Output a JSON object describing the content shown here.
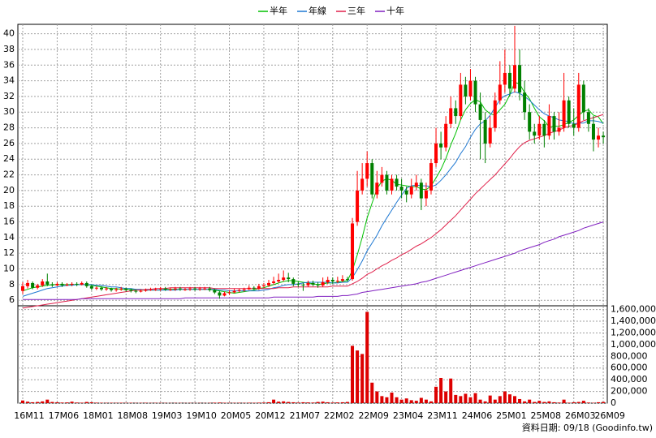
{
  "chart_data": {
    "type": "candlestick",
    "categories": [
      "16M11",
      null,
      null,
      null,
      null,
      null,
      null,
      "17M06",
      null,
      null,
      null,
      null,
      null,
      null,
      "18M01",
      null,
      null,
      null,
      null,
      null,
      null,
      "18M08",
      null,
      null,
      null,
      null,
      null,
      null,
      "19M03",
      null,
      null,
      null,
      null,
      null,
      null,
      "19M10",
      null,
      null,
      null,
      null,
      null,
      null,
      "20M05",
      null,
      null,
      null,
      null,
      null,
      null,
      "20M12",
      null,
      null,
      null,
      null,
      null,
      null,
      "21M07",
      null,
      null,
      null,
      null,
      null,
      null,
      "22M02",
      null,
      null,
      null,
      null,
      null,
      null,
      "22M09",
      null,
      null,
      null,
      null,
      null,
      null,
      "23M04",
      null,
      null,
      null,
      null,
      null,
      null,
      "23M11",
      null,
      null,
      null,
      null,
      null,
      null,
      "24M06",
      null,
      null,
      null,
      null,
      null,
      null,
      "25M01",
      null,
      null,
      null,
      null,
      null,
      null,
      "25M08",
      null,
      null,
      null,
      null,
      null,
      null,
      "26M03",
      null,
      null,
      null,
      null,
      null,
      "26M09"
    ],
    "open": [
      7.2,
      7.8,
      8.2,
      7.6,
      7.9,
      8.4,
      8.0,
      7.9,
      8.1,
      7.9,
      8.0,
      8.1,
      8.0,
      8.2,
      7.8,
      7.5,
      7.6,
      7.4,
      7.5,
      7.3,
      7.4,
      7.5,
      7.3,
      7.2,
      7.1,
      7.2,
      7.3,
      7.4,
      7.4,
      7.5,
      7.4,
      7.4,
      7.5,
      7.4,
      7.4,
      7.5,
      7.4,
      7.5,
      7.5,
      7.3,
      7.0,
      6.6,
      6.9,
      7.0,
      7.2,
      7.3,
      7.4,
      7.6,
      7.5,
      7.8,
      7.9,
      8.2,
      8.4,
      8.6,
      8.9,
      8.7,
      8.1,
      8.0,
      7.9,
      8.2,
      8.0,
      7.9,
      8.3,
      8.6,
      8.4,
      8.5,
      8.7,
      8.7,
      16.0,
      20.0,
      21.5,
      23.5,
      19.5,
      21.0,
      22.0,
      20.0,
      21.5,
      20.5,
      20.0,
      19.5,
      20.5,
      21.0,
      19.0,
      20.0,
      23.5,
      26.0,
      25.5,
      28.5,
      30.5,
      29.5,
      33.5,
      32.0,
      34.0,
      31.0,
      29.0,
      26.0,
      28.0,
      31.5,
      33.5,
      35.0,
      33.0,
      36.0,
      32.5,
      30.0,
      27.5,
      27.0,
      28.5,
      27.0,
      29.5,
      27.5,
      28.0,
      31.5,
      28.5,
      28.0,
      33.5,
      30.0,
      28.5,
      26.5,
      27.0
    ],
    "high": [
      8.3,
      8.6,
      8.4,
      8.1,
      8.7,
      9.4,
      8.3,
      8.3,
      8.3,
      8.2,
      8.3,
      8.3,
      8.4,
      8.4,
      8.0,
      7.8,
      7.8,
      7.7,
      7.6,
      7.6,
      7.7,
      7.6,
      7.5,
      7.4,
      7.4,
      7.5,
      7.6,
      7.6,
      7.7,
      7.7,
      7.6,
      7.7,
      7.7,
      7.6,
      7.7,
      7.7,
      7.7,
      7.7,
      7.7,
      7.5,
      7.2,
      7.1,
      7.3,
      7.5,
      7.5,
      7.6,
      7.9,
      7.8,
      8.1,
      8.2,
      8.6,
      9.0,
      9.4,
      9.8,
      9.5,
      8.9,
      8.4,
      8.2,
      8.5,
      8.5,
      8.3,
      8.9,
      9.0,
      8.9,
      9.0,
      9.2,
      9.0,
      16.5,
      22.5,
      23.5,
      25.0,
      24.0,
      22.5,
      23.0,
      22.5,
      22.0,
      22.0,
      21.5,
      20.5,
      21.5,
      22.0,
      21.5,
      21.0,
      24.0,
      28.0,
      27.5,
      29.5,
      32.0,
      31.5,
      35.0,
      34.5,
      35.5,
      34.5,
      32.5,
      30.0,
      29.5,
      32.5,
      36.5,
      38.0,
      36.0,
      41.0,
      38.0,
      34.0,
      31.0,
      28.5,
      29.5,
      29.0,
      31.0,
      30.0,
      30.0,
      35.0,
      32.0,
      30.5,
      35.0,
      34.0,
      30.5,
      29.5,
      28.0,
      27.5
    ],
    "low": [
      6.8,
      7.5,
      7.4,
      7.4,
      7.7,
      7.8,
      7.7,
      7.8,
      7.7,
      7.8,
      7.8,
      7.8,
      7.9,
      7.6,
      7.3,
      7.3,
      7.2,
      7.2,
      7.1,
      7.1,
      7.2,
      7.1,
      7.0,
      6.9,
      7.0,
      7.1,
      7.2,
      7.2,
      7.2,
      7.2,
      7.2,
      7.2,
      7.2,
      7.2,
      7.2,
      7.2,
      7.2,
      7.3,
      7.1,
      6.8,
      6.2,
      6.5,
      6.7,
      6.9,
      7.0,
      7.1,
      7.3,
      7.3,
      7.3,
      7.6,
      7.7,
      8.0,
      8.2,
      8.4,
      8.3,
      7.8,
      7.7,
      7.2,
      7.7,
      7.8,
      7.6,
      7.7,
      8.1,
      8.1,
      8.2,
      8.3,
      8.4,
      8.5,
      15.5,
      19.5,
      20.5,
      19.0,
      19.0,
      20.5,
      19.5,
      19.5,
      20.0,
      19.0,
      18.5,
      19.0,
      20.0,
      17.5,
      18.0,
      19.5,
      23.0,
      24.0,
      25.0,
      28.0,
      28.5,
      29.0,
      31.0,
      31.5,
      30.0,
      24.0,
      23.5,
      25.5,
      27.5,
      31.0,
      32.5,
      32.0,
      32.5,
      31.5,
      29.0,
      26.5,
      26.0,
      26.5,
      25.5,
      26.5,
      26.5,
      27.0,
      27.5,
      28.0,
      27.0,
      27.5,
      29.0,
      27.5,
      25.0,
      25.5,
      26.0
    ],
    "close": [
      7.8,
      8.2,
      7.6,
      7.9,
      8.4,
      8.0,
      7.9,
      8.1,
      7.9,
      8.0,
      8.1,
      8.0,
      8.2,
      7.8,
      7.5,
      7.6,
      7.4,
      7.5,
      7.3,
      7.4,
      7.5,
      7.3,
      7.2,
      7.1,
      7.2,
      7.3,
      7.4,
      7.4,
      7.5,
      7.4,
      7.4,
      7.5,
      7.4,
      7.4,
      7.5,
      7.4,
      7.5,
      7.5,
      7.3,
      7.0,
      6.6,
      6.9,
      7.0,
      7.2,
      7.3,
      7.4,
      7.6,
      7.5,
      7.8,
      7.9,
      8.2,
      8.4,
      8.6,
      8.9,
      8.7,
      8.1,
      8.0,
      7.9,
      8.2,
      8.0,
      7.9,
      8.3,
      8.6,
      8.4,
      8.5,
      8.7,
      8.6,
      15.8,
      20.0,
      21.5,
      23.5,
      19.5,
      21.0,
      22.0,
      20.0,
      21.5,
      20.5,
      20.0,
      19.5,
      20.5,
      21.0,
      19.0,
      20.0,
      23.5,
      26.0,
      25.5,
      28.5,
      30.5,
      29.5,
      33.5,
      32.0,
      34.0,
      31.0,
      29.0,
      26.0,
      28.0,
      31.5,
      33.5,
      35.0,
      33.0,
      36.0,
      32.5,
      30.0,
      27.5,
      27.0,
      28.5,
      27.0,
      29.5,
      27.5,
      28.0,
      31.5,
      28.5,
      28.0,
      33.5,
      30.0,
      28.5,
      26.5,
      27.0,
      26.8
    ],
    "up_color": "#ff0000",
    "down_color": "#008000",
    "series": [
      {
        "name": "半年",
        "color": "#00c000",
        "values": [
          7.2,
          7.4,
          7.6,
          7.7,
          7.8,
          7.9,
          8.0,
          8.0,
          8.0,
          8.0,
          8.0,
          8.0,
          8.0,
          8.0,
          7.9,
          7.8,
          7.7,
          7.6,
          7.5,
          7.5,
          7.4,
          7.4,
          7.4,
          7.3,
          7.3,
          7.3,
          7.3,
          7.3,
          7.3,
          7.4,
          7.4,
          7.4,
          7.4,
          7.4,
          7.4,
          7.4,
          7.4,
          7.4,
          7.4,
          7.3,
          7.2,
          7.1,
          7.0,
          6.9,
          7.0,
          7.1,
          7.2,
          7.3,
          7.5,
          7.6,
          7.8,
          8.0,
          8.2,
          8.4,
          8.5,
          8.5,
          8.4,
          8.3,
          8.2,
          8.1,
          8.0,
          8.1,
          8.2,
          8.2,
          8.3,
          8.4,
          8.5,
          9.8,
          11.8,
          14.0,
          16.5,
          18.4,
          20.2,
          21.2,
          21.5,
          21.3,
          20.8,
          20.7,
          20.6,
          20.5,
          20.5,
          20.2,
          20.1,
          20.6,
          21.6,
          22.7,
          24.1,
          25.8,
          27.3,
          29.0,
          30.3,
          31.1,
          31.6,
          31.3,
          30.3,
          29.8,
          29.6,
          30.3,
          31.0,
          32.2,
          33.8,
          33.6,
          32.5,
          31.7,
          30.5,
          29.4,
          28.9,
          28.1,
          28.2,
          28.2,
          28.4,
          28.7,
          29.0,
          29.6,
          30.1,
          30.3,
          29.6,
          29.4,
          28.5
        ]
      },
      {
        "name": "年線",
        "color": "#1e78d2",
        "values": [
          6.5,
          6.7,
          6.9,
          7.1,
          7.3,
          7.5,
          7.6,
          7.7,
          7.8,
          7.9,
          7.9,
          8.0,
          8.0,
          8.0,
          8.0,
          7.9,
          7.9,
          7.8,
          7.7,
          7.7,
          7.6,
          7.5,
          7.5,
          7.4,
          7.4,
          7.3,
          7.3,
          7.3,
          7.3,
          7.3,
          7.3,
          7.3,
          7.4,
          7.4,
          7.4,
          7.4,
          7.4,
          7.4,
          7.4,
          7.4,
          7.3,
          7.3,
          7.2,
          7.2,
          7.2,
          7.2,
          7.2,
          7.2,
          7.2,
          7.3,
          7.4,
          7.6,
          7.7,
          7.9,
          8.0,
          8.0,
          8.1,
          8.2,
          8.3,
          8.3,
          8.3,
          8.3,
          8.3,
          8.2,
          8.2,
          8.3,
          8.3,
          8.9,
          9.9,
          11.0,
          12.3,
          13.3,
          14.3,
          15.5,
          16.5,
          17.5,
          18.5,
          19.4,
          20.3,
          20.6,
          20.7,
          20.6,
          20.6,
          20.5,
          20.7,
          21.3,
          22.0,
          22.8,
          23.6,
          24.7,
          25.6,
          26.8,
          27.8,
          28.5,
          28.9,
          29.6,
          30.6,
          31.6,
          32.1,
          32.3,
          32.6,
          32.4,
          32.0,
          31.5,
          30.9,
          30.3,
          29.8,
          29.5,
          29.3,
          29.0,
          28.9,
          28.8,
          28.5,
          28.6,
          28.6,
          28.9,
          28.9,
          28.8,
          28.6
        ]
      },
      {
        "name": "三年",
        "color": "#e0204a",
        "values": [
          5.0,
          5.1,
          5.2,
          5.3,
          5.4,
          5.5,
          5.6,
          5.7,
          5.8,
          5.9,
          6.0,
          6.1,
          6.2,
          6.3,
          6.4,
          6.5,
          6.6,
          6.7,
          6.8,
          6.9,
          7.0,
          7.1,
          7.2,
          7.3,
          7.3,
          7.4,
          7.4,
          7.5,
          7.5,
          7.5,
          7.6,
          7.6,
          7.6,
          7.6,
          7.6,
          7.6,
          7.6,
          7.6,
          7.6,
          7.5,
          7.5,
          7.5,
          7.5,
          7.5,
          7.5,
          7.5,
          7.5,
          7.5,
          7.5,
          7.5,
          7.5,
          7.5,
          7.6,
          7.6,
          7.6,
          7.7,
          7.7,
          7.7,
          7.7,
          7.7,
          7.7,
          7.7,
          7.7,
          7.8,
          7.8,
          7.8,
          7.8,
          8.1,
          8.4,
          8.8,
          9.3,
          9.6,
          10.0,
          10.4,
          10.7,
          11.1,
          11.4,
          11.8,
          12.1,
          12.5,
          12.9,
          13.2,
          13.6,
          14.0,
          14.5,
          15.0,
          15.6,
          16.2,
          16.8,
          17.5,
          18.2,
          18.9,
          19.6,
          20.2,
          20.8,
          21.4,
          22.0,
          22.7,
          23.4,
          24.1,
          24.9,
          25.6,
          26.1,
          26.4,
          26.6,
          26.8,
          27.0,
          27.3,
          27.5,
          27.7,
          28.0,
          28.2,
          28.3,
          28.6,
          28.9,
          29.1,
          29.3,
          29.5,
          29.7
        ]
      },
      {
        "name": "十年",
        "color": "#8020c0",
        "values": [
          6.1,
          6.1,
          6.1,
          6.1,
          6.1,
          6.1,
          6.1,
          6.1,
          6.1,
          6.1,
          6.1,
          6.1,
          6.2,
          6.2,
          6.2,
          6.2,
          6.2,
          6.2,
          6.2,
          6.2,
          6.2,
          6.2,
          6.2,
          6.2,
          6.2,
          6.2,
          6.2,
          6.2,
          6.2,
          6.2,
          6.2,
          6.2,
          6.2,
          6.3,
          6.3,
          6.3,
          6.3,
          6.3,
          6.3,
          6.3,
          6.3,
          6.3,
          6.3,
          6.3,
          6.3,
          6.3,
          6.3,
          6.3,
          6.3,
          6.3,
          6.3,
          6.4,
          6.4,
          6.4,
          6.4,
          6.4,
          6.4,
          6.4,
          6.4,
          6.4,
          6.5,
          6.5,
          6.5,
          6.5,
          6.5,
          6.6,
          6.6,
          6.7,
          6.8,
          7.0,
          7.1,
          7.2,
          7.3,
          7.4,
          7.5,
          7.6,
          7.7,
          7.8,
          7.9,
          8.0,
          8.1,
          8.3,
          8.4,
          8.6,
          8.8,
          9.0,
          9.2,
          9.4,
          9.6,
          9.8,
          10.0,
          10.2,
          10.4,
          10.6,
          10.8,
          11.0,
          11.2,
          11.4,
          11.6,
          11.8,
          12.0,
          12.3,
          12.5,
          12.7,
          12.9,
          13.1,
          13.4,
          13.6,
          13.8,
          14.1,
          14.3,
          14.5,
          14.7,
          14.9,
          15.2,
          15.4,
          15.6,
          15.8,
          16.0
        ]
      }
    ],
    "volume": [
      45000,
      25000,
      15000,
      20000,
      30000,
      60000,
      20000,
      15000,
      10000,
      12000,
      25000,
      10000,
      8000,
      20000,
      15000,
      8000,
      6000,
      5000,
      6000,
      5000,
      7000,
      5000,
      6000,
      4000,
      5000,
      6000,
      4000,
      5000,
      5000,
      4000,
      3000,
      4000,
      4000,
      3000,
      4000,
      3000,
      4000,
      3000,
      5000,
      8000,
      10000,
      7000,
      6000,
      5000,
      6000,
      5000,
      7000,
      6000,
      8000,
      10000,
      15000,
      60000,
      25000,
      30000,
      20000,
      15000,
      10000,
      15000,
      12000,
      10000,
      20000,
      25000,
      15000,
      10000,
      12000,
      15000,
      20000,
      980000,
      900000,
      840000,
      1560000,
      350000,
      200000,
      120000,
      100000,
      180000,
      100000,
      60000,
      80000,
      50000,
      40000,
      90000,
      60000,
      30000,
      280000,
      430000,
      200000,
      420000,
      140000,
      120000,
      160000,
      100000,
      170000,
      60000,
      30000,
      130000,
      60000,
      120000,
      200000,
      150000,
      120000,
      70000,
      30000,
      60000,
      20000,
      40000,
      20000,
      30000,
      15000,
      10000,
      60000,
      8000,
      15000,
      20000,
      40000,
      10000,
      6000,
      15000,
      20000
    ],
    "volume_color": "#dd0000",
    "ylim": [
      5.4,
      41.2
    ],
    "yticks": [
      6,
      8,
      10,
      12,
      14,
      16,
      18,
      20,
      22,
      24,
      26,
      28,
      30,
      32,
      34,
      36,
      38,
      40
    ],
    "volume_lim": [
      0,
      1650000
    ],
    "volume_ticks": [
      0,
      {
        "value": 200000,
        "label": "200,000"
      },
      {
        "value": 400000,
        "label": "400,000"
      },
      {
        "value": 600000,
        "label": "600,000"
      },
      {
        "value": 800000,
        "label": "800,000"
      },
      {
        "value": 1000000,
        "label": "1,000,000"
      },
      {
        "value": 1200000,
        "label": "1,200,000"
      },
      {
        "value": 1400000,
        "label": "1,400,000"
      },
      {
        "value": 1600000,
        "label": "1,600,000"
      }
    ],
    "grid": true,
    "note": "資料日期: 09/18  (Goodinfo.tw)"
  }
}
